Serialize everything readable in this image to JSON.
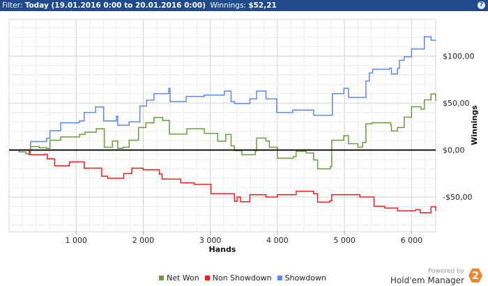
{
  "header": {
    "filter_label": "Filter:",
    "filter_value": "Today (19.01.2016 0:00 to 20.01.2016 0:00)",
    "winnings_label": "Winnings:",
    "winnings_value": "$52,21",
    "help_icon": "question-icon"
  },
  "branding": {
    "powered_by": "Powered by",
    "product": "Hold'em Manager",
    "logo_text": "2",
    "logo_color": "#f0842c"
  },
  "chart_data": {
    "type": "line",
    "xlabel": "Hands",
    "ylabel": "Winnings",
    "xlim": [
      0,
      6360
    ],
    "ylim": [
      -87,
      139
    ],
    "xticks": [
      1000,
      2000,
      3000,
      4000,
      5000,
      6000
    ],
    "xtick_labels": [
      "1 000",
      "2 000",
      "3 000",
      "4 000",
      "5 000",
      "6 000"
    ],
    "yticks": [
      -50,
      0,
      50,
      100
    ],
    "ytick_labels": [
      "-$50,00",
      "$0,00",
      "$50,00",
      "$100,00"
    ],
    "grid": true,
    "legend_placement": "bottom",
    "series": [
      {
        "name": "Net Won",
        "color": "#6b9a3c",
        "points": [
          [
            0,
            0
          ],
          [
            150,
            -2
          ],
          [
            250,
            -4
          ],
          [
            320,
            3.7
          ],
          [
            450,
            2.5
          ],
          [
            560,
            1.8
          ],
          [
            610,
            10.4
          ],
          [
            770,
            14
          ],
          [
            1050,
            16.6
          ],
          [
            1130,
            19
          ],
          [
            1300,
            22.7
          ],
          [
            1420,
            3
          ],
          [
            1540,
            9.6
          ],
          [
            1620,
            1.8
          ],
          [
            1700,
            3
          ],
          [
            1790,
            10.4
          ],
          [
            1930,
            24
          ],
          [
            2040,
            29
          ],
          [
            2160,
            34.6
          ],
          [
            2290,
            31.5
          ],
          [
            2390,
            17
          ],
          [
            2650,
            22.7
          ],
          [
            2910,
            17.8
          ],
          [
            3110,
            9.4
          ],
          [
            3230,
            16.6
          ],
          [
            3310,
            4.3
          ],
          [
            3360,
            -0.7
          ],
          [
            3470,
            -5
          ],
          [
            3670,
            -1
          ],
          [
            3690,
            12.8
          ],
          [
            3830,
            9.6
          ],
          [
            3880,
            3
          ],
          [
            4000,
            -8.7
          ],
          [
            4240,
            -7
          ],
          [
            4280,
            -1.3
          ],
          [
            4430,
            -3.2
          ],
          [
            4540,
            -10.6
          ],
          [
            4600,
            -20
          ],
          [
            4790,
            -17.6
          ],
          [
            4810,
            10.4
          ],
          [
            4990,
            15.3
          ],
          [
            5060,
            6.7
          ],
          [
            5200,
            3
          ],
          [
            5270,
            8
          ],
          [
            5320,
            27.9
          ],
          [
            5410,
            29
          ],
          [
            5690,
            26.5
          ],
          [
            5700,
            20.3
          ],
          [
            5790,
            24
          ],
          [
            5890,
            35
          ],
          [
            6000,
            46
          ],
          [
            6140,
            43.6
          ],
          [
            6190,
            53.4
          ],
          [
            6290,
            59.6
          ],
          [
            6360,
            52.2
          ]
        ]
      },
      {
        "name": "Non Showdown",
        "color": "#ff1a1a",
        "points": [
          [
            0,
            0
          ],
          [
            300,
            -5
          ],
          [
            530,
            -4.5
          ],
          [
            570,
            -9.4
          ],
          [
            680,
            -16.8
          ],
          [
            900,
            -12.6
          ],
          [
            1120,
            -19.3
          ],
          [
            1380,
            -27.9
          ],
          [
            1470,
            -30
          ],
          [
            1710,
            -25
          ],
          [
            1830,
            -19.3
          ],
          [
            2000,
            -21
          ],
          [
            2240,
            -25.5
          ],
          [
            2280,
            -31
          ],
          [
            2560,
            -34.9
          ],
          [
            2760,
            -36.6
          ],
          [
            3010,
            -46.5
          ],
          [
            3200,
            -46.5
          ],
          [
            3360,
            -54.6
          ],
          [
            3400,
            -50
          ],
          [
            3450,
            -55
          ],
          [
            3590,
            -47.5
          ],
          [
            3830,
            -50
          ],
          [
            4000,
            -47.5
          ],
          [
            4280,
            -44
          ],
          [
            4540,
            -46.5
          ],
          [
            4600,
            -55.5
          ],
          [
            4780,
            -54
          ],
          [
            4810,
            -47.5
          ],
          [
            5230,
            -50
          ],
          [
            5440,
            -59.9
          ],
          [
            5600,
            -61.8
          ],
          [
            5790,
            -64.8
          ],
          [
            6060,
            -63.6
          ],
          [
            6130,
            -66.8
          ],
          [
            6290,
            -60.4
          ],
          [
            6360,
            -64.8
          ]
        ]
      },
      {
        "name": "Showdown",
        "color": "#5b87f5",
        "points": [
          [
            0,
            0
          ],
          [
            300,
            -2
          ],
          [
            320,
            9
          ],
          [
            560,
            12.5
          ],
          [
            610,
            20.5
          ],
          [
            770,
            29
          ],
          [
            1050,
            31
          ],
          [
            1120,
            40
          ],
          [
            1290,
            45.8
          ],
          [
            1410,
            31
          ],
          [
            1600,
            36
          ],
          [
            1620,
            26.5
          ],
          [
            1790,
            30
          ],
          [
            1950,
            46.8
          ],
          [
            2050,
            53
          ],
          [
            2160,
            60
          ],
          [
            2380,
            65.6
          ],
          [
            2400,
            51.7
          ],
          [
            2640,
            57
          ],
          [
            2910,
            58.5
          ],
          [
            3210,
            62.8
          ],
          [
            3310,
            51.5
          ],
          [
            3360,
            49.5
          ],
          [
            3590,
            54.5
          ],
          [
            3690,
            62.8
          ],
          [
            3830,
            54.5
          ],
          [
            3990,
            40
          ],
          [
            4230,
            42.5
          ],
          [
            4540,
            37
          ],
          [
            4820,
            60
          ],
          [
            4990,
            65.6
          ],
          [
            5060,
            56
          ],
          [
            5320,
            73.5
          ],
          [
            5370,
            82
          ],
          [
            5420,
            86
          ],
          [
            5670,
            87
          ],
          [
            5700,
            81
          ],
          [
            5790,
            87
          ],
          [
            5820,
            95.6
          ],
          [
            5890,
            99.3
          ],
          [
            6000,
            107.6
          ],
          [
            6190,
            120.7
          ],
          [
            6290,
            117
          ],
          [
            6360,
            117
          ]
        ]
      }
    ]
  }
}
